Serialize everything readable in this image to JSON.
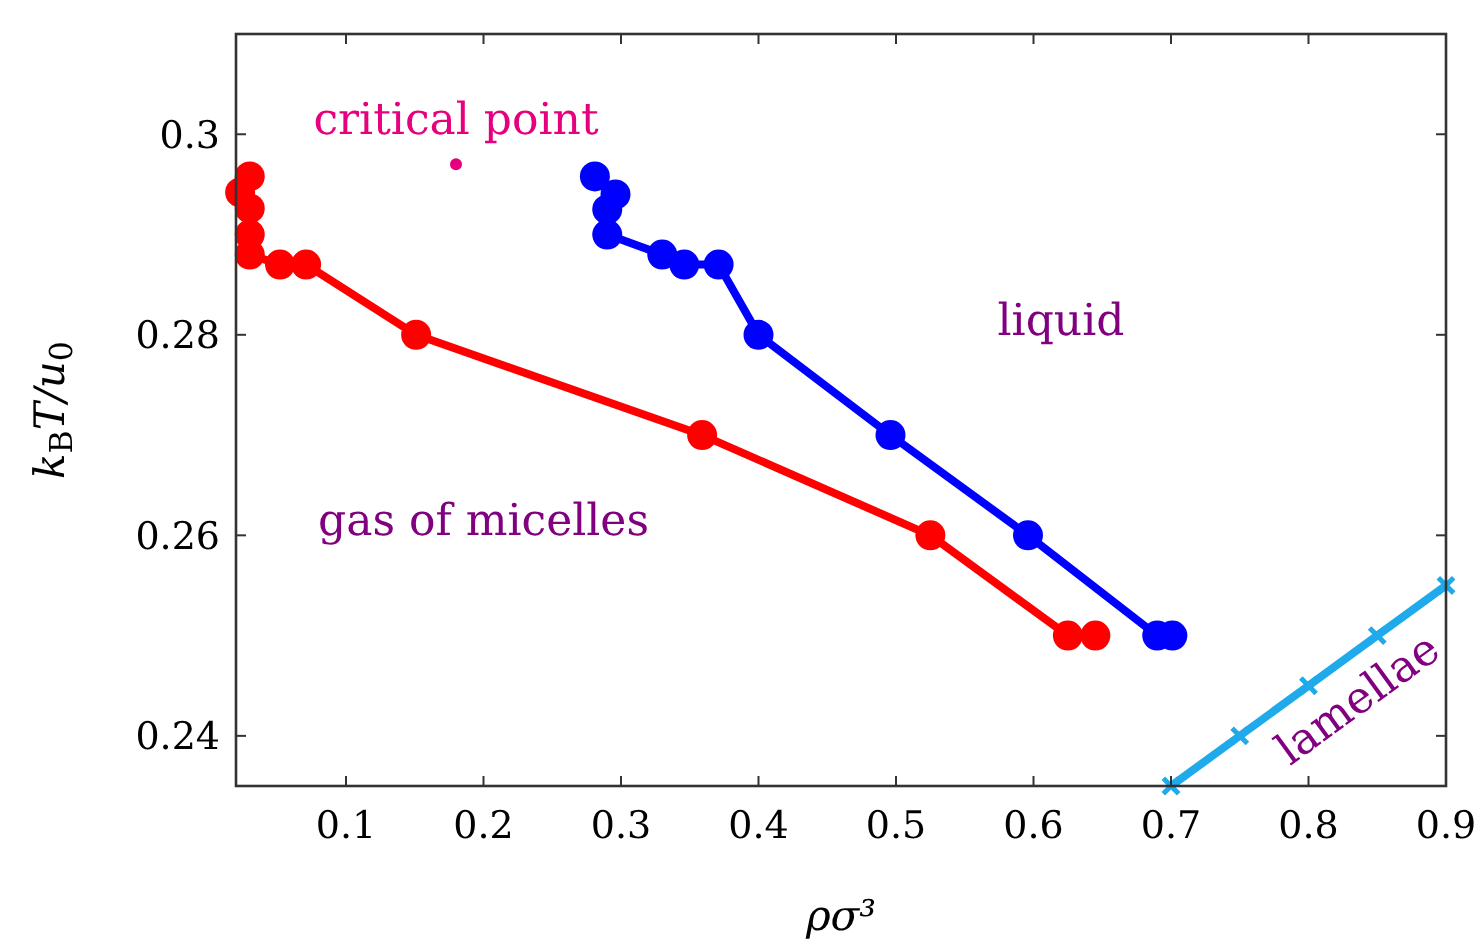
{
  "chart_data": {
    "type": "line",
    "xlabel": "ρσ³",
    "ylabel": "k$_{B}$T/u$_{0}$",
    "xlim": [
      0.02,
      0.9
    ],
    "ylim": [
      0.235,
      0.31
    ],
    "xticks": [
      0.1,
      0.2,
      0.3,
      0.4,
      0.5,
      0.6,
      0.7,
      0.8,
      0.9
    ],
    "yticks": [
      0.24,
      0.26,
      0.28,
      0.3
    ],
    "grid": false,
    "series": [
      {
        "color": "#ff0000",
        "marker": "circle",
        "x": [
          0.03,
          0.023,
          0.03,
          0.03,
          0.03,
          0.052,
          0.071,
          0.151,
          0.359,
          0.525,
          0.625,
          0.645
        ],
        "values": [
          0.2958,
          0.2942,
          0.2926,
          0.29,
          0.288,
          0.287,
          0.287,
          0.28,
          0.27,
          0.26,
          0.25,
          0.25
        ]
      },
      {
        "color": "#0000ff",
        "marker": "circle",
        "x": [
          0.281,
          0.296,
          0.29,
          0.29,
          0.33,
          0.346,
          0.371,
          0.4,
          0.496,
          0.596,
          0.69,
          0.701
        ],
        "values": [
          0.2958,
          0.294,
          0.2925,
          0.29,
          0.288,
          0.287,
          0.287,
          0.28,
          0.27,
          0.26,
          0.25,
          0.25
        ]
      },
      {
        "color": "#1eaaeb",
        "marker": "cross",
        "x": [
          0.7,
          0.75,
          0.8,
          0.85,
          0.9
        ],
        "values": [
          0.235,
          0.24,
          0.245,
          0.25,
          0.255
        ]
      },
      {
        "type": "scatter",
        "color": "#e6007e",
        "marker": "circle",
        "x": [
          0.18
        ],
        "values": [
          0.297
        ]
      }
    ],
    "annotations": [
      "critical point",
      "liquid",
      "gas of micelles",
      "lamellae"
    ]
  }
}
